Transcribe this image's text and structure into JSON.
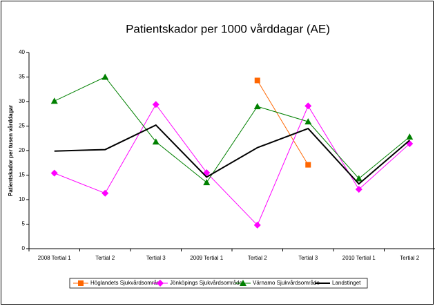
{
  "chart_data": {
    "type": "line",
    "title": "Patientskador per 1000 vårddagar (AE)",
    "y_label": "Patientskador per tusen vårddagar",
    "categories": [
      "2008 Tertial 1",
      "Tertial 2",
      "Tertial 3",
      "2009 Tertial 1",
      "Tertial 2",
      "Tertial 3",
      "2010 Tertial 1",
      "Tertial 2"
    ],
    "series": [
      {
        "name": "Höglandets Sjukvårdsområde",
        "color": "#ff6600",
        "marker": "square",
        "values": [
          null,
          null,
          null,
          null,
          34.3,
          17.1,
          null,
          null
        ]
      },
      {
        "name": "Jönköpings Sjukvårdsområde",
        "color": "#ff00ff",
        "marker": "diamond",
        "values": [
          15.4,
          11.3,
          29.4,
          15.5,
          4.8,
          29.1,
          12.1,
          21.4
        ]
      },
      {
        "name": "Värnamo Sjukvårdsområde",
        "color": "#008000",
        "marker": "triangle",
        "values": [
          30.1,
          35.0,
          21.8,
          13.5,
          29.0,
          25.9,
          14.3,
          22.8
        ]
      },
      {
        "name": "Landstinget",
        "color": "#000000",
        "marker": "none",
        "values": [
          19.9,
          20.2,
          25.2,
          14.6,
          20.6,
          24.5,
          13.2,
          22.1
        ]
      }
    ],
    "ylim": [
      0,
      40
    ],
    "yticks": [
      0,
      5,
      10,
      15,
      20,
      25,
      30,
      35,
      40
    ],
    "grid": false,
    "legend": "bottom"
  }
}
